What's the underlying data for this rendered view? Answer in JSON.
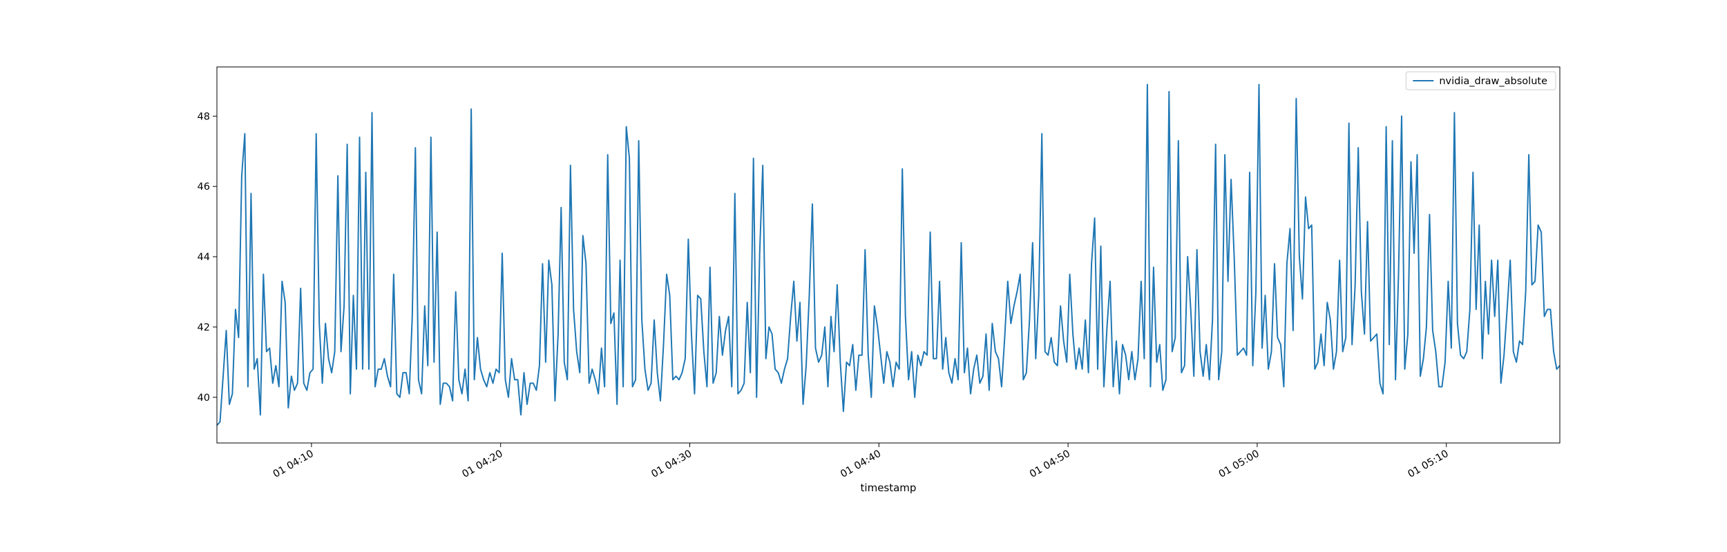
{
  "chart_data": {
    "type": "line",
    "title": "",
    "xlabel": "timestamp",
    "ylabel": "",
    "grid": false,
    "legend_position": "upper right",
    "x_unit": "time (HH:MM, day 01)",
    "x_start": "04:05",
    "x_end": "05:16",
    "xlim": [
      "04:05",
      "05:16"
    ],
    "ylim": [
      38.7,
      49.4
    ],
    "x_ticks": [
      {
        "label": "01 04:10",
        "value": "04:10"
      },
      {
        "label": "01 04:20",
        "value": "04:20"
      },
      {
        "label": "01 04:30",
        "value": "04:30"
      },
      {
        "label": "01 04:40",
        "value": "04:40"
      },
      {
        "label": "01 04:50",
        "value": "04:50"
      },
      {
        "label": "01 05:00",
        "value": "05:00"
      },
      {
        "label": "01 05:10",
        "value": "05:10"
      }
    ],
    "y_ticks": [
      40,
      42,
      44,
      46,
      48
    ],
    "series": [
      {
        "name": "nvidia_draw_absolute",
        "color": "#1f77b4",
        "values": [
          39.2,
          39.3,
          40.6,
          41.9,
          39.8,
          40.1,
          42.5,
          41.7,
          46.3,
          47.5,
          40.3,
          45.8,
          40.8,
          41.1,
          39.5,
          43.5,
          41.3,
          41.4,
          40.4,
          40.9,
          40.3,
          43.3,
          42.7,
          39.7,
          40.6,
          40.2,
          40.4,
          43.1,
          40.4,
          40.2,
          40.7,
          40.8,
          47.5,
          42.1,
          40.4,
          42.1,
          41.1,
          40.7,
          41.3,
          46.3,
          41.3,
          42.6,
          47.2,
          40.1,
          42.9,
          40.8,
          47.4,
          40.8,
          46.4,
          40.8,
          48.1,
          40.3,
          40.8,
          40.8,
          41.1,
          40.6,
          40.3,
          43.5,
          40.1,
          40.0,
          40.7,
          40.7,
          40.1,
          42.3,
          47.1,
          40.5,
          40.1,
          42.6,
          40.9,
          47.4,
          41.0,
          44.7,
          39.8,
          40.4,
          40.4,
          40.3,
          39.9,
          43.0,
          40.5,
          40.1,
          40.8,
          39.9,
          48.2,
          40.5,
          41.7,
          40.8,
          40.5,
          40.3,
          40.7,
          40.4,
          40.8,
          40.7,
          44.1,
          40.5,
          40.0,
          41.1,
          40.5,
          40.5,
          39.5,
          40.7,
          39.8,
          40.4,
          40.4,
          40.2,
          40.9,
          43.8,
          41.0,
          43.9,
          43.2,
          39.9,
          41.8,
          45.4,
          41.0,
          40.5,
          46.6,
          42.5,
          41.3,
          40.7,
          44.6,
          43.8,
          40.4,
          40.8,
          40.5,
          40.1,
          41.4,
          40.3,
          46.9,
          42.1,
          42.4,
          39.8,
          43.9,
          40.3,
          47.7,
          46.8,
          40.3,
          40.5,
          47.3,
          42.2,
          40.8,
          40.2,
          40.4,
          42.2,
          40.7,
          39.9,
          41.5,
          43.5,
          42.9,
          40.5,
          40.6,
          40.5,
          40.7,
          41.1,
          44.5,
          41.8,
          40.1,
          42.9,
          42.8,
          41.3,
          40.3,
          43.7,
          40.4,
          40.7,
          42.3,
          41.2,
          41.9,
          42.3,
          40.3,
          45.8,
          40.1,
          40.2,
          40.4,
          42.7,
          40.7,
          46.8,
          40.0,
          44.1,
          46.6,
          41.1,
          42.0,
          41.8,
          40.8,
          40.7,
          40.4,
          40.8,
          41.1,
          42.3,
          43.3,
          41.6,
          42.7,
          39.8,
          40.9,
          42.9,
          45.5,
          41.4,
          41.0,
          41.2,
          42.0,
          40.3,
          42.3,
          41.3,
          43.2,
          41.0,
          39.6,
          41.0,
          40.9,
          41.5,
          40.2,
          41.2,
          41.2,
          44.2,
          41.2,
          40.0,
          42.6,
          42.0,
          41.2,
          40.4,
          41.3,
          41.0,
          40.3,
          41.0,
          40.8,
          46.5,
          42.3,
          40.5,
          41.3,
          40.0,
          41.2,
          40.9,
          41.3,
          41.2,
          44.7,
          41.1,
          41.1,
          43.3,
          40.8,
          41.7,
          40.7,
          40.4,
          41.1,
          40.5,
          44.4,
          40.7,
          41.4,
          40.1,
          40.8,
          41.2,
          40.4,
          40.6,
          41.8,
          40.2,
          42.1,
          41.3,
          41.1,
          40.3,
          41.7,
          43.3,
          42.1,
          42.6,
          43.0,
          43.5,
          40.5,
          40.7,
          42.2,
          44.4,
          41.1,
          42.9,
          47.5,
          41.3,
          41.2,
          41.7,
          41.0,
          40.9,
          42.6,
          41.6,
          41.0,
          43.5,
          41.8,
          40.8,
          41.4,
          40.8,
          42.2,
          40.7,
          43.8,
          45.1,
          40.8,
          44.3,
          40.3,
          42.0,
          43.3,
          40.3,
          41.6,
          40.1,
          41.5,
          41.2,
          40.5,
          41.3,
          40.5,
          41.1,
          43.3,
          41.1,
          48.9,
          40.3,
          43.7,
          41.0,
          41.5,
          40.2,
          40.5,
          48.7,
          41.3,
          41.7,
          47.3,
          40.7,
          40.9,
          44.0,
          42.5,
          40.6,
          44.2,
          41.3,
          40.6,
          41.5,
          40.5,
          42.2,
          47.2,
          40.5,
          41.3,
          46.9,
          43.3,
          46.2,
          44.0,
          41.2,
          41.3,
          41.4,
          41.2,
          46.4,
          40.9,
          43.0,
          48.9,
          41.4,
          42.9,
          40.8,
          41.3,
          43.8,
          41.7,
          41.5,
          40.3,
          43.8,
          44.8,
          41.9,
          48.5,
          44.0,
          42.8,
          45.7,
          44.8,
          44.9,
          40.8,
          41.0,
          41.8,
          40.9,
          42.7,
          42.2,
          40.8,
          41.3,
          43.9,
          41.3,
          41.7,
          47.8,
          41.5,
          43.2,
          47.1,
          43.0,
          41.8,
          45.0,
          41.6,
          41.7,
          41.8,
          40.4,
          40.1,
          47.7,
          41.5,
          47.3,
          40.5,
          43.5,
          48.0,
          40.8,
          41.8,
          46.7,
          44.1,
          46.9,
          40.6,
          41.1,
          42.0,
          45.2,
          41.9,
          41.3,
          40.3,
          40.3,
          41.0,
          43.3,
          41.4,
          48.1,
          42.1,
          41.2,
          41.1,
          41.3,
          42.5,
          46.4,
          42.5,
          44.9,
          41.1,
          43.3,
          41.8,
          43.9,
          42.3,
          43.9,
          40.4,
          41.2,
          42.5,
          43.9,
          41.3,
          41.0,
          41.6,
          41.5,
          43.0,
          46.9,
          43.2,
          43.3,
          44.9,
          44.7,
          42.3,
          42.5,
          42.5,
          41.3,
          40.8,
          40.9
        ]
      }
    ]
  }
}
